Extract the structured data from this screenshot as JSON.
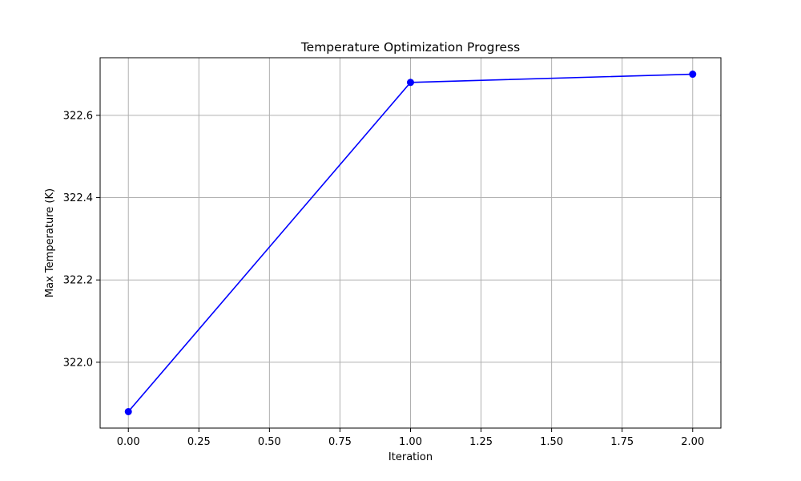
{
  "chart_data": {
    "type": "line",
    "title": "Temperature Optimization Progress",
    "xlabel": "Iteration",
    "ylabel": "Max Temperature (K)",
    "x": [
      0,
      1,
      2
    ],
    "series": [
      {
        "values": [
          321.88,
          322.68,
          322.7
        ],
        "color": "#0000ff",
        "marker": "circle"
      }
    ],
    "xlim": [
      -0.1,
      2.1
    ],
    "ylim": [
      321.84,
      322.74
    ],
    "x_ticks": [
      0,
      0.25,
      0.5,
      0.75,
      1.0,
      1.25,
      1.5,
      1.75,
      2.0
    ],
    "x_tick_labels": [
      "0.00",
      "0.25",
      "0.50",
      "0.75",
      "1.00",
      "1.25",
      "1.50",
      "1.75",
      "2.00"
    ],
    "y_ticks": [
      322.0,
      322.2,
      322.4,
      322.6
    ],
    "y_tick_labels": [
      "322.0",
      "322.2",
      "322.4",
      "322.6"
    ],
    "grid": true,
    "grid_color": "#b0b0b0",
    "axis_color": "#000000"
  }
}
